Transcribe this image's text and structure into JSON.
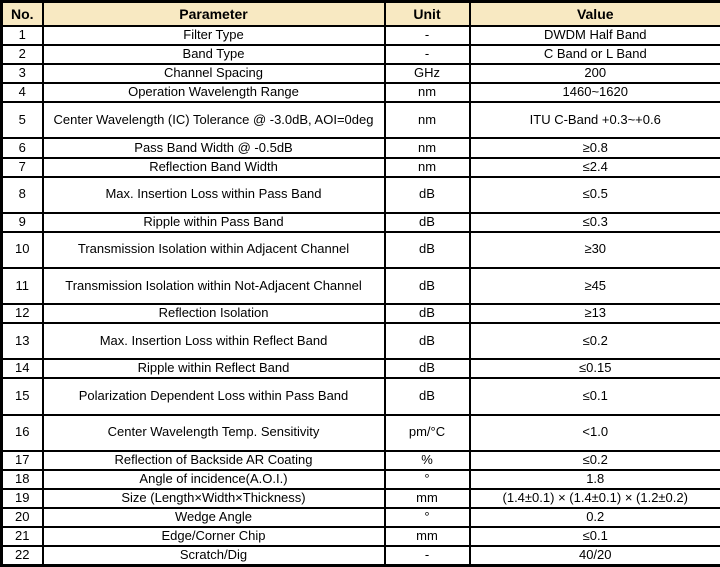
{
  "colors": {
    "header_background": "#F8E9C2",
    "border": "#000000",
    "text": "#000000"
  },
  "table": {
    "columns": {
      "no": "No.",
      "parameter": "Parameter",
      "unit": "Unit",
      "value": "Value"
    },
    "rows": [
      {
        "no": "1",
        "parameter": "Filter Type",
        "unit": "-",
        "value": "DWDM Half Band",
        "tall": false
      },
      {
        "no": "2",
        "parameter": "Band Type",
        "unit": "-",
        "value": "C Band or L Band",
        "tall": false
      },
      {
        "no": "3",
        "parameter": "Channel Spacing",
        "unit": "GHz",
        "value": "200",
        "tall": false
      },
      {
        "no": "4",
        "parameter": "Operation Wavelength Range",
        "unit": "nm",
        "value": "1460~1620",
        "tall": false
      },
      {
        "no": "5",
        "parameter": "Center Wavelength (IC) Tolerance @ -3.0dB, AOI=0deg",
        "unit": "nm",
        "value": "ITU C-Band +0.3~+0.6",
        "tall": true
      },
      {
        "no": "6",
        "parameter": "Pass Band Width @ -0.5dB",
        "unit": "nm",
        "value": "≥0.8",
        "tall": false
      },
      {
        "no": "7",
        "parameter": "Reflection Band Width",
        "unit": "nm",
        "value": "≤2.4",
        "tall": false
      },
      {
        "no": "8",
        "parameter": "Max. Insertion Loss within Pass Band",
        "unit": "dB",
        "value": "≤0.5",
        "tall": true
      },
      {
        "no": "9",
        "parameter": "Ripple within Pass Band",
        "unit": "dB",
        "value": "≤0.3",
        "tall": false
      },
      {
        "no": "10",
        "parameter": "Transmission Isolation within Adjacent Channel",
        "unit": "dB",
        "value": "≥30",
        "tall": true
      },
      {
        "no": "11",
        "parameter": "Transmission Isolation within Not-Adjacent Channel",
        "unit": "dB",
        "value": "≥45",
        "tall": true
      },
      {
        "no": "12",
        "parameter": "Reflection Isolation",
        "unit": "dB",
        "value": "≥13",
        "tall": false
      },
      {
        "no": "13",
        "parameter": "Max. Insertion Loss within Reflect Band",
        "unit": "dB",
        "value": "≤0.2",
        "tall": true
      },
      {
        "no": "14",
        "parameter": "Ripple within Reflect Band",
        "unit": "dB",
        "value": "≤0.15",
        "tall": false
      },
      {
        "no": "15",
        "parameter": "Polarization Dependent Loss within Pass Band",
        "unit": "dB",
        "value": "≤0.1",
        "tall": true
      },
      {
        "no": "16",
        "parameter": "Center Wavelength Temp. Sensitivity",
        "unit": "pm/°C",
        "value": "<1.0",
        "tall": true
      },
      {
        "no": "17",
        "parameter": "Reflection of Backside AR Coating",
        "unit": "%",
        "value": "≤0.2",
        "tall": false
      },
      {
        "no": "18",
        "parameter": "Angle of incidence(A.O.I.)",
        "unit": "°",
        "value": "1.8",
        "tall": false
      },
      {
        "no": "19",
        "parameter": "Size (Length×Width×Thickness)",
        "unit": "mm",
        "value": "(1.4±0.1) × (1.4±0.1) × (1.2±0.2)",
        "tall": false
      },
      {
        "no": "20",
        "parameter": "Wedge Angle",
        "unit": "°",
        "value": "0.2",
        "tall": false
      },
      {
        "no": "21",
        "parameter": "Edge/Corner Chip",
        "unit": "mm",
        "value": "≤0.1",
        "tall": false
      },
      {
        "no": "22",
        "parameter": "Scratch/Dig",
        "unit": "-",
        "value": "40/20",
        "tall": false
      }
    ]
  }
}
